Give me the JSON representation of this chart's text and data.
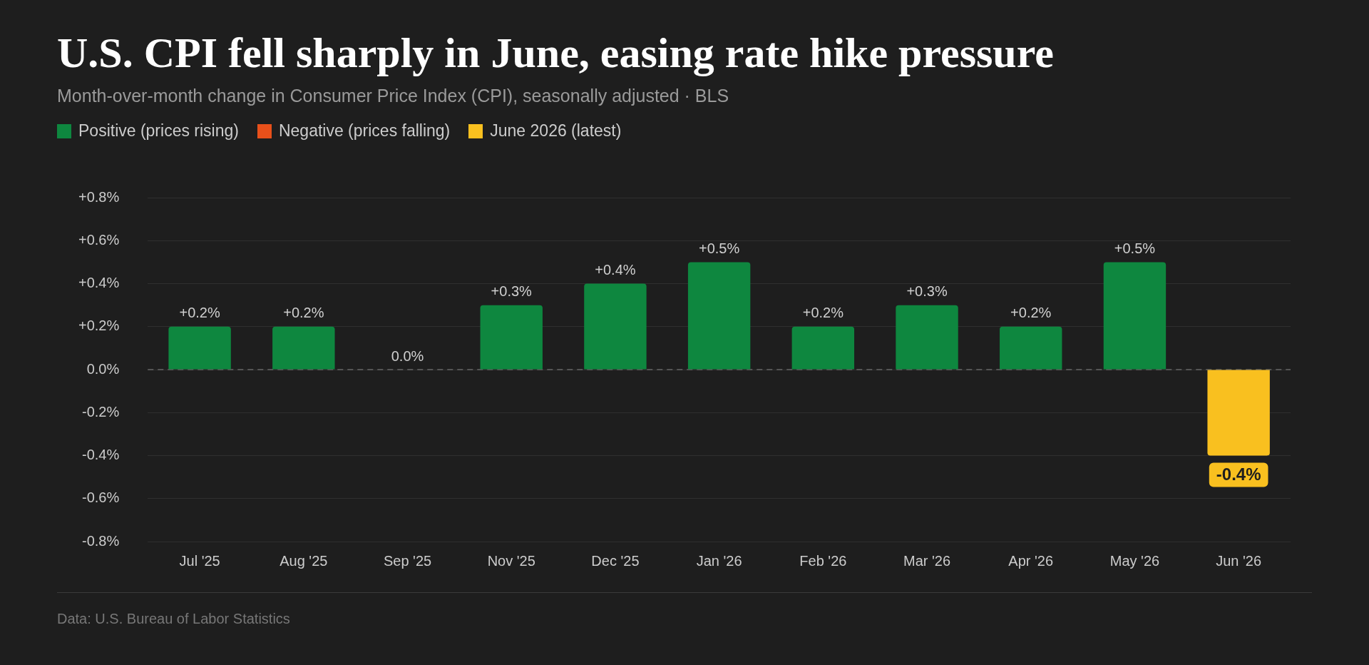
{
  "chart_data": {
    "type": "bar",
    "title": "U.S. CPI fell sharply in June, easing rate hike pressure",
    "subtitle": "Month-over-month change in Consumer Price Index (CPI), seasonally adjusted · BLS",
    "categories": [
      "Jul '25",
      "Aug '25",
      "Sep '25",
      "Nov '25",
      "Dec '25",
      "Jan '26",
      "Feb '26",
      "Mar '26",
      "Apr '26",
      "May '26",
      "Jun '26"
    ],
    "stacked": true,
    "series": [
      {
        "name": "Positive (prices rising)",
        "color": "#0e873f",
        "values": [
          0.2,
          0.2,
          0.0,
          0.3,
          0.4,
          0.5,
          0.2,
          0.3,
          0.2,
          0.5,
          null
        ],
        "value_labels": [
          "+0.2%",
          "+0.2%",
          "0.0%",
          "+0.3%",
          "+0.4%",
          "+0.5%",
          "+0.2%",
          "+0.3%",
          "+0.2%",
          "+0.5%",
          null
        ]
      },
      {
        "name": "Negative (prices falling)",
        "color": "#e8501a",
        "values": [
          null,
          null,
          null,
          null,
          null,
          null,
          null,
          null,
          null,
          null,
          null
        ]
      },
      {
        "name": "June 2026 (latest)",
        "color": "#f9c01f",
        "values": [
          null,
          null,
          null,
          null,
          null,
          null,
          null,
          null,
          null,
          null,
          -0.4
        ],
        "value_labels": [
          null,
          null,
          null,
          null,
          null,
          null,
          null,
          null,
          null,
          null,
          "-0.4%"
        ]
      }
    ],
    "ylim": [
      -0.8,
      0.8
    ],
    "yticks": [
      {
        "value": -0.8,
        "label": "-0.8%"
      },
      {
        "value": -0.6,
        "label": "-0.6%"
      },
      {
        "value": -0.4,
        "label": "-0.4%"
      },
      {
        "value": -0.2,
        "label": "-0.2%"
      },
      {
        "value": 0,
        "label": "0.0%"
      },
      {
        "value": 0.2,
        "label": "+0.2%"
      },
      {
        "value": 0.4,
        "label": "+0.4%"
      },
      {
        "value": 0.6,
        "label": "+0.6%"
      },
      {
        "value": 0.8,
        "label": "+0.8%"
      }
    ],
    "grid": "y",
    "legend": "top left",
    "ref_lines": [
      {
        "axis": "y",
        "value": 0,
        "color": "#666666",
        "line_style": "dashed"
      }
    ],
    "annotations": [
      "Data: U.S. Bureau of Labor Statistics"
    ]
  }
}
